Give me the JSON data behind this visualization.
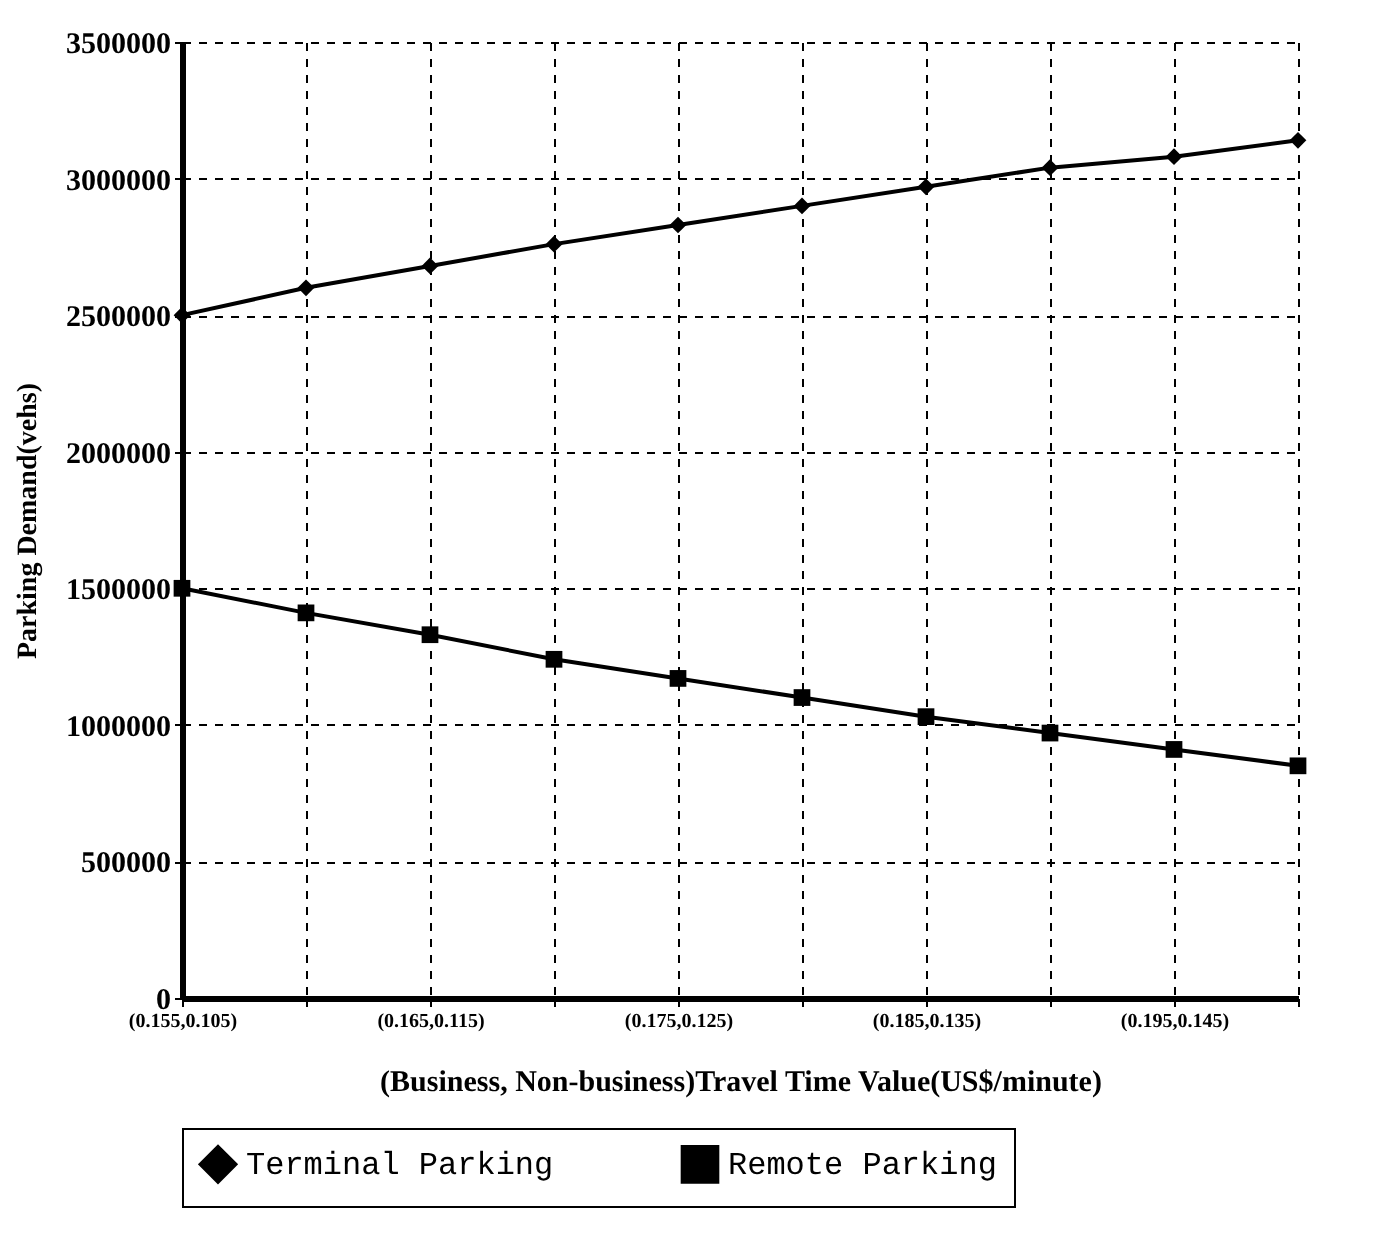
{
  "chart_data": {
    "type": "line",
    "xlabel": "(Business, Non-business)Travel Time Value(US$/minute)",
    "ylabel": "Parking Demand(vehs)",
    "categories": [
      "(0.155,0.105)",
      null,
      "(0.165,0.115)",
      null,
      "(0.175,0.125)",
      null,
      "(0.185,0.135)",
      null,
      "(0.195,0.145)",
      null
    ],
    "series": [
      {
        "name": "Terminal Parking",
        "color": "#000000",
        "marker": "diamond",
        "values": [
          2500000,
          2600000,
          2680000,
          2760000,
          2830000,
          2900000,
          2970000,
          3040000,
          3080000,
          3140000
        ]
      },
      {
        "name": "Remote Parking",
        "color": "#000000",
        "marker": "square",
        "values": [
          1500000,
          1410000,
          1330000,
          1240000,
          1170000,
          1100000,
          1030000,
          970000,
          910000,
          850000
        ]
      }
    ],
    "ylim": [
      0,
      3500000
    ],
    "yticks": [
      0,
      500000,
      1000000,
      1500000,
      2000000,
      2500000,
      3000000,
      3500000
    ],
    "grid": true,
    "legend": "bottom",
    "line_style": "solid"
  }
}
